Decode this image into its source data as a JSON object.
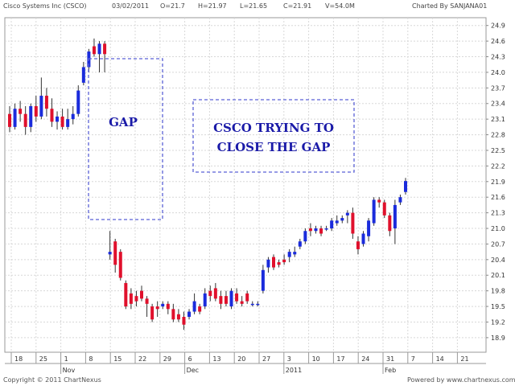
{
  "header": {
    "title": "Cisco Systems Inc (CSCO)",
    "date": "03/02/2011",
    "open": "O=21.7",
    "high": "H=21.97",
    "low": "L=21.65",
    "close": "C=21.91",
    "volume": "V=54.0M",
    "charted_by": "Charted By SANJANA01"
  },
  "footer": {
    "copyright": "Copyright © 2011 ChartNexus",
    "powered_by": "Powered by www.chartnexus.com"
  },
  "colors": {
    "up": "#1a2bdc",
    "down": "#e0102c",
    "box": "#5a62d6",
    "grid": "#d8d8d8",
    "annotation_text": "#1a1aa8"
  },
  "chart_data": {
    "type": "candlestick",
    "y_ticks": [
      "18.9",
      "19.2",
      "19.5",
      "19.8",
      "20.1",
      "20.4",
      "20.7",
      "21.0",
      "21.3",
      "21.6",
      "21.9",
      "22.2",
      "22.5",
      "22.8",
      "23.1",
      "23.4",
      "23.7",
      "24.0",
      "24.3",
      "24.6",
      "24.9"
    ],
    "ylim": [
      18.62,
      25.05
    ],
    "x_ticks": [
      "18",
      "25",
      "1",
      "8",
      "15",
      "22",
      "29",
      "6",
      "13",
      "20",
      "27",
      "3",
      "10",
      "17",
      "24",
      "31",
      "7",
      "14",
      "21"
    ],
    "month_labels": [
      {
        "label": "Nov",
        "at_tick": 2
      },
      {
        "label": "Dec",
        "at_tick": 7
      },
      {
        "label": "2011",
        "at_tick": 11
      },
      {
        "label": "Feb",
        "at_tick": 15
      }
    ],
    "candles": [
      {
        "open": 23.2,
        "high": 23.35,
        "low": 22.85,
        "close": 22.95
      },
      {
        "open": 22.95,
        "high": 23.4,
        "low": 22.9,
        "close": 23.3
      },
      {
        "open": 23.3,
        "high": 23.45,
        "low": 23.05,
        "close": 23.2
      },
      {
        "open": 23.2,
        "high": 23.35,
        "low": 22.8,
        "close": 22.95
      },
      {
        "open": 22.95,
        "high": 23.4,
        "low": 22.85,
        "close": 23.35
      },
      {
        "open": 23.35,
        "high": 23.55,
        "low": 23.05,
        "close": 23.15
      },
      {
        "open": 23.15,
        "high": 23.9,
        "low": 23.1,
        "close": 23.55
      },
      {
        "open": 23.55,
        "high": 23.7,
        "low": 23.15,
        "close": 23.3
      },
      {
        "open": 23.3,
        "high": 23.5,
        "low": 22.95,
        "close": 23.05
      },
      {
        "open": 23.05,
        "high": 23.25,
        "low": 22.9,
        "close": 23.15
      },
      {
        "open": 23.15,
        "high": 23.3,
        "low": 22.9,
        "close": 22.95
      },
      {
        "open": 22.95,
        "high": 23.3,
        "low": 22.9,
        "close": 23.1
      },
      {
        "open": 23.1,
        "high": 23.35,
        "low": 23.0,
        "close": 23.2
      },
      {
        "open": 23.2,
        "high": 23.75,
        "low": 23.15,
        "close": 23.65
      },
      {
        "open": 23.8,
        "high": 24.2,
        "low": 23.75,
        "close": 24.1
      },
      {
        "open": 24.1,
        "high": 24.45,
        "low": 24.0,
        "close": 24.4
      },
      {
        "open": 24.5,
        "high": 24.65,
        "low": 24.3,
        "close": 24.35
      },
      {
        "open": 24.35,
        "high": 24.6,
        "low": 24.0,
        "close": 24.55
      },
      {
        "open": 24.55,
        "high": 24.6,
        "low": 24.0,
        "close": 24.35
      },
      {
        "open": 20.5,
        "high": 20.95,
        "low": 20.4,
        "close": 20.55
      },
      {
        "open": 20.75,
        "high": 20.8,
        "low": 20.15,
        "close": 20.3
      },
      {
        "open": 20.55,
        "high": 20.6,
        "low": 20.0,
        "close": 20.05
      },
      {
        "open": 19.95,
        "high": 20.0,
        "low": 19.45,
        "close": 19.5
      },
      {
        "open": 19.75,
        "high": 19.85,
        "low": 19.45,
        "close": 19.55
      },
      {
        "open": 19.7,
        "high": 19.8,
        "low": 19.5,
        "close": 19.6
      },
      {
        "open": 19.8,
        "high": 19.9,
        "low": 19.6,
        "close": 19.65
      },
      {
        "open": 19.65,
        "high": 19.7,
        "low": 19.3,
        "close": 19.55
      },
      {
        "open": 19.5,
        "high": 19.55,
        "low": 19.2,
        "close": 19.25
      },
      {
        "open": 19.5,
        "high": 19.6,
        "low": 19.3,
        "close": 19.45
      },
      {
        "open": 19.5,
        "high": 19.6,
        "low": 19.45,
        "close": 19.55
      },
      {
        "open": 19.55,
        "high": 19.6,
        "low": 19.35,
        "close": 19.45
      },
      {
        "open": 19.45,
        "high": 19.55,
        "low": 19.2,
        "close": 19.25
      },
      {
        "open": 19.35,
        "high": 19.45,
        "low": 19.2,
        "close": 19.25
      },
      {
        "open": 19.3,
        "high": 19.4,
        "low": 19.05,
        "close": 19.15
      },
      {
        "open": 19.3,
        "high": 19.45,
        "low": 19.25,
        "close": 19.4
      },
      {
        "open": 19.4,
        "high": 19.75,
        "low": 19.35,
        "close": 19.6
      },
      {
        "open": 19.5,
        "high": 19.55,
        "low": 19.35,
        "close": 19.4
      },
      {
        "open": 19.5,
        "high": 19.85,
        "low": 19.45,
        "close": 19.75
      },
      {
        "open": 19.8,
        "high": 19.9,
        "low": 19.6,
        "close": 19.7
      },
      {
        "open": 19.85,
        "high": 19.95,
        "low": 19.6,
        "close": 19.65
      },
      {
        "open": 19.7,
        "high": 19.8,
        "low": 19.45,
        "close": 19.55
      },
      {
        "open": 19.7,
        "high": 19.8,
        "low": 19.5,
        "close": 19.55
      },
      {
        "open": 19.5,
        "high": 19.85,
        "low": 19.45,
        "close": 19.8
      },
      {
        "open": 19.75,
        "high": 19.85,
        "low": 19.55,
        "close": 19.6
      },
      {
        "open": 19.6,
        "high": 19.7,
        "low": 19.5,
        "close": 19.55
      },
      {
        "open": 19.75,
        "high": 19.8,
        "low": 19.55,
        "close": 19.6
      },
      {
        "open": 19.55,
        "high": 19.6,
        "low": 19.5,
        "close": 19.55
      },
      {
        "open": 19.55,
        "high": 19.6,
        "low": 19.5,
        "close": 19.55
      },
      {
        "open": 19.8,
        "high": 20.3,
        "low": 19.75,
        "close": 20.2
      },
      {
        "open": 20.25,
        "high": 20.45,
        "low": 20.15,
        "close": 20.4
      },
      {
        "open": 20.45,
        "high": 20.5,
        "low": 20.2,
        "close": 20.25
      },
      {
        "open": 20.35,
        "high": 20.4,
        "low": 20.25,
        "close": 20.3
      },
      {
        "open": 20.4,
        "high": 20.5,
        "low": 20.3,
        "close": 20.35
      },
      {
        "open": 20.45,
        "high": 20.6,
        "low": 20.35,
        "close": 20.55
      },
      {
        "open": 20.5,
        "high": 20.65,
        "low": 20.45,
        "close": 20.55
      },
      {
        "open": 20.65,
        "high": 20.8,
        "low": 20.6,
        "close": 20.75
      },
      {
        "open": 20.75,
        "high": 21.0,
        "low": 20.7,
        "close": 20.95
      },
      {
        "open": 21.0,
        "high": 21.1,
        "low": 20.85,
        "close": 20.95
      },
      {
        "open": 20.95,
        "high": 21.05,
        "low": 20.9,
        "close": 21.0
      },
      {
        "open": 21.0,
        "high": 21.05,
        "low": 20.85,
        "close": 20.9
      },
      {
        "open": 21.0,
        "high": 21.05,
        "low": 20.95,
        "close": 21.0
      },
      {
        "open": 21.0,
        "high": 21.2,
        "low": 20.95,
        "close": 21.15
      },
      {
        "open": 21.1,
        "high": 21.25,
        "low": 21.05,
        "close": 21.15
      },
      {
        "open": 21.15,
        "high": 21.25,
        "low": 21.1,
        "close": 21.2
      },
      {
        "open": 21.25,
        "high": 21.35,
        "low": 21.1,
        "close": 21.3
      },
      {
        "open": 21.3,
        "high": 21.4,
        "low": 20.8,
        "close": 20.9
      },
      {
        "open": 20.75,
        "high": 20.85,
        "low": 20.5,
        "close": 20.6
      },
      {
        "open": 20.7,
        "high": 20.95,
        "low": 20.65,
        "close": 20.9
      },
      {
        "open": 20.85,
        "high": 21.2,
        "low": 20.75,
        "close": 21.15
      },
      {
        "open": 21.1,
        "high": 21.6,
        "low": 21.05,
        "close": 21.55
      },
      {
        "open": 21.55,
        "high": 21.6,
        "low": 21.4,
        "close": 21.5
      },
      {
        "open": 21.5,
        "high": 21.55,
        "low": 21.2,
        "close": 21.25
      },
      {
        "open": 21.25,
        "high": 21.3,
        "low": 20.85,
        "close": 20.95
      },
      {
        "open": 21.0,
        "high": 21.55,
        "low": 20.7,
        "close": 21.45
      },
      {
        "open": 21.5,
        "high": 21.65,
        "low": 21.45,
        "close": 21.6
      },
      {
        "open": 21.7,
        "high": 21.97,
        "low": 21.65,
        "close": 21.91
      }
    ],
    "annotations": [
      {
        "label": "GAP",
        "shape": "dashed-box"
      },
      {
        "label": "CSCO TRYING TO\nCLOSE THE GAP",
        "shape": "dashed-box"
      }
    ]
  }
}
